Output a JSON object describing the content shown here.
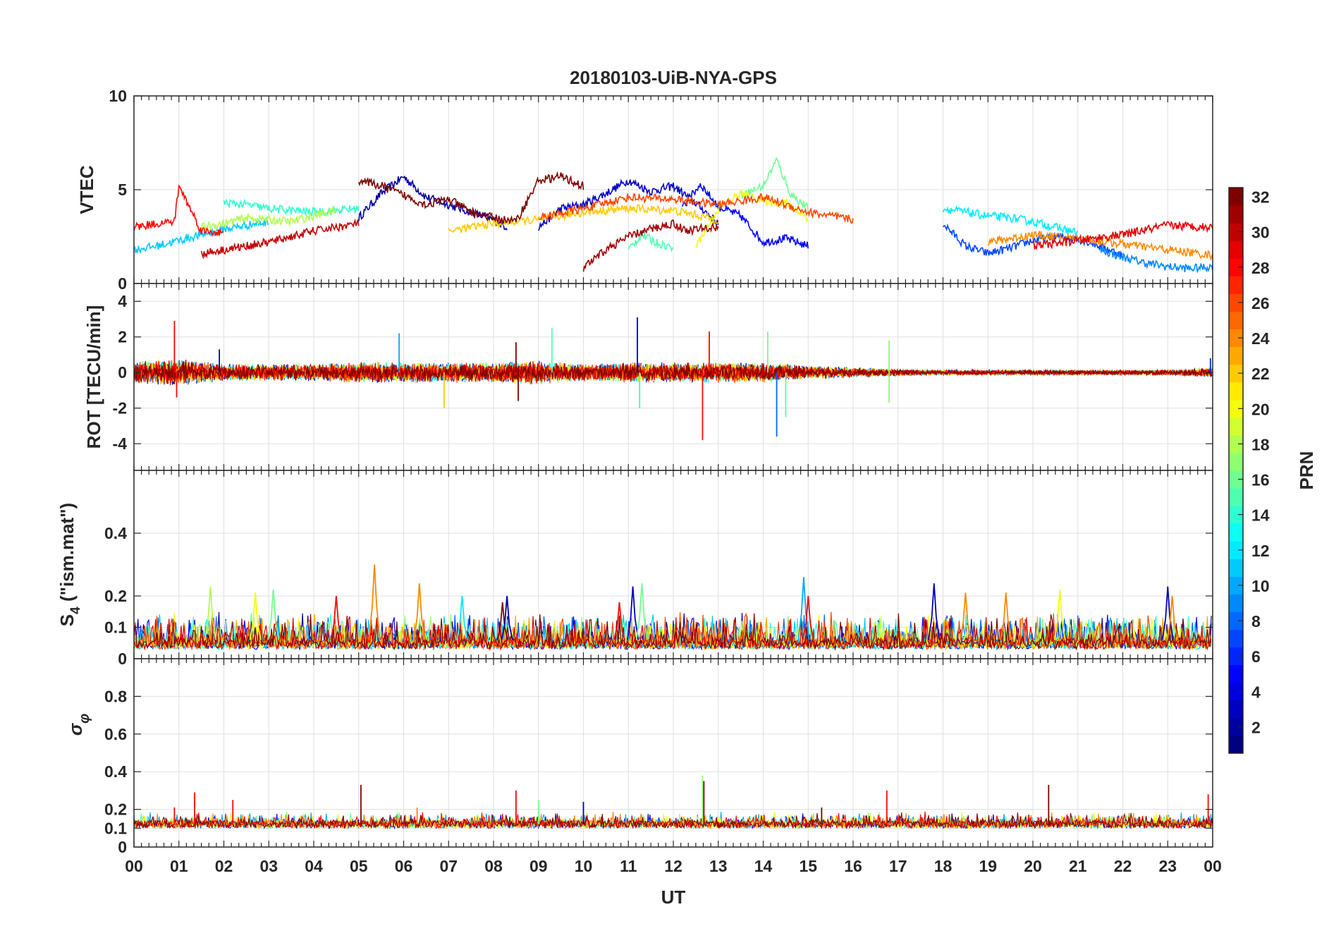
{
  "figure": {
    "title": "20180103-UiB-NYA-GPS",
    "xlabel": "UT"
  },
  "chart_data": [
    {
      "type": "line",
      "id": "vtec",
      "ylabel": "VTEC",
      "ylim": [
        0,
        10
      ],
      "yticks": [
        0,
        5,
        10
      ],
      "xlim": [
        0,
        24
      ],
      "grid": true,
      "note_series": "one trace per GPS PRN (1-32), coloured by PRN",
      "series": [
        {
          "prn": 2,
          "x": [
            5.0,
            5.5,
            6.0,
            6.5,
            7.0,
            7.5,
            8.0,
            8.3
          ],
          "y": [
            3.5,
            4.8,
            5.7,
            4.6,
            4.2,
            3.8,
            3.4,
            3.0
          ]
        },
        {
          "prn": 3,
          "x": [
            9.0,
            9.5,
            10.0,
            10.5,
            11.0,
            11.5,
            12.0,
            12.5,
            13.0
          ],
          "y": [
            3.0,
            4.0,
            4.2,
            4.8,
            5.5,
            4.9,
            5.2,
            4.3,
            3.2
          ]
        },
        {
          "prn": 5,
          "x": [
            12.2,
            12.6,
            13.0,
            13.5,
            14.0,
            14.5,
            15.0
          ],
          "y": [
            4.0,
            5.3,
            4.1,
            3.6,
            2.2,
            2.4,
            2.0
          ]
        },
        {
          "prn": 7,
          "x": [
            18.0,
            18.5,
            19.0,
            19.5,
            20.0,
            20.5,
            21.0,
            21.5,
            22.0
          ],
          "y": [
            3.2,
            2.0,
            1.6,
            1.9,
            2.3,
            2.5,
            2.4,
            2.0,
            1.5
          ]
        },
        {
          "prn": 9,
          "x": [
            21.5,
            22.0,
            22.5,
            23.0,
            23.5,
            24.0
          ],
          "y": [
            1.8,
            1.4,
            1.1,
            0.9,
            0.8,
            0.9
          ]
        },
        {
          "prn": 11,
          "x": [
            0.0,
            0.5,
            1.0,
            1.5,
            2.0,
            2.5,
            3.0
          ],
          "y": [
            1.8,
            2.0,
            2.3,
            2.6,
            2.9,
            3.1,
            3.3
          ]
        },
        {
          "prn": 12,
          "x": [
            18.0,
            18.5,
            19.0,
            19.5,
            20.0,
            20.5,
            21.0
          ],
          "y": [
            4.0,
            3.8,
            3.6,
            3.5,
            3.3,
            3.0,
            2.7
          ]
        },
        {
          "prn": 14,
          "x": [
            2.0,
            2.5,
            3.0,
            3.5,
            4.0,
            4.5,
            5.0
          ],
          "y": [
            4.3,
            4.2,
            4.0,
            3.9,
            3.8,
            3.9,
            4.0
          ]
        },
        {
          "prn": 15,
          "x": [
            11.0,
            11.3,
            11.6,
            12.0
          ],
          "y": [
            1.8,
            2.6,
            2.2,
            1.9
          ]
        },
        {
          "prn": 16,
          "x": [
            13.5,
            14.0,
            14.3,
            14.6,
            15.0
          ],
          "y": [
            4.7,
            5.2,
            6.6,
            4.8,
            4.0
          ]
        },
        {
          "prn": 18,
          "x": [
            1.5,
            2.0,
            2.5,
            3.0,
            3.5,
            4.0,
            4.5
          ],
          "y": [
            3.0,
            3.2,
            3.5,
            3.4,
            3.3,
            3.6,
            3.9
          ]
        },
        {
          "prn": 20,
          "x": [
            12.5,
            13.0,
            13.5,
            14.0,
            14.5,
            15.0
          ],
          "y": [
            2.0,
            4.0,
            4.8,
            4.4,
            4.3,
            3.5
          ]
        },
        {
          "prn": 22,
          "x": [
            7.0,
            8.0,
            9.0,
            10.0,
            11.0,
            12.0,
            13.0
          ],
          "y": [
            2.8,
            3.2,
            3.4,
            3.8,
            4.0,
            3.9,
            3.4
          ]
        },
        {
          "prn": 24,
          "x": [
            19.0,
            20.0,
            21.0,
            22.0,
            23.0,
            24.0
          ],
          "y": [
            2.2,
            2.6,
            2.4,
            2.1,
            1.8,
            1.5
          ]
        },
        {
          "prn": 26,
          "x": [
            9.0,
            10.0,
            11.0,
            12.0,
            13.0,
            14.0,
            15.0,
            16.0
          ],
          "y": [
            3.5,
            4.0,
            4.6,
            4.5,
            4.2,
            4.6,
            3.8,
            3.4
          ]
        },
        {
          "prn": 28,
          "x": [
            0.0,
            0.5,
            0.9,
            1.0,
            1.5,
            2.0
          ],
          "y": [
            3.0,
            3.2,
            3.3,
            5.2,
            2.8,
            2.7
          ]
        },
        {
          "prn": 29,
          "x": [
            20.0,
            21.0,
            22.0,
            23.0,
            24.0
          ],
          "y": [
            2.0,
            2.3,
            2.6,
            3.1,
            3.0
          ]
        },
        {
          "prn": 30,
          "x": [
            1.5,
            2.0,
            2.5,
            3.0,
            3.5,
            4.0,
            4.5,
            5.0
          ],
          "y": [
            1.6,
            1.8,
            2.0,
            2.2,
            2.5,
            2.8,
            3.0,
            3.2
          ]
        },
        {
          "prn": 31,
          "x": [
            10.0,
            10.5,
            11.0,
            11.5,
            12.0,
            12.3,
            12.5,
            13.0
          ],
          "y": [
            0.8,
            1.8,
            2.5,
            2.9,
            3.2,
            2.8,
            2.9,
            3.0
          ]
        },
        {
          "prn": 32,
          "x": [
            5.0,
            5.5,
            6.0,
            6.5,
            7.0,
            7.5,
            8.0,
            8.5,
            9.0,
            9.5,
            10.0
          ],
          "y": [
            5.5,
            5.2,
            4.7,
            4.2,
            4.5,
            3.8,
            3.5,
            3.3,
            5.5,
            5.7,
            5.2
          ]
        }
      ]
    },
    {
      "type": "line",
      "id": "rot",
      "ylabel": "ROT [TECU/min]",
      "ylim": [
        -5.5,
        5
      ],
      "yticks": [
        -4,
        -2,
        0,
        2,
        4
      ],
      "xlim": [
        0,
        24
      ],
      "grid": true,
      "noise_envelope": {
        "x": [
          0,
          1,
          2,
          3,
          4,
          5,
          6,
          7,
          8,
          9,
          10,
          11,
          12,
          13,
          14,
          15,
          16,
          17,
          18,
          19,
          20,
          21,
          22,
          23,
          24
        ],
        "amplitude": [
          0.7,
          0.8,
          0.5,
          0.5,
          0.5,
          0.6,
          0.6,
          0.6,
          0.6,
          0.7,
          0.5,
          0.6,
          0.6,
          0.6,
          0.6,
          0.4,
          0.3,
          0.2,
          0.15,
          0.15,
          0.15,
          0.15,
          0.15,
          0.15,
          0.3
        ]
      },
      "spikes": [
        {
          "x": 0.9,
          "y": 2.9,
          "prn": 28
        },
        {
          "x": 0.95,
          "y": -1.4,
          "prn": 28
        },
        {
          "x": 1.9,
          "y": 1.3,
          "prn": 3
        },
        {
          "x": 5.9,
          "y": 2.2,
          "prn": 10
        },
        {
          "x": 6.9,
          "y": -2.0,
          "prn": 22
        },
        {
          "x": 8.5,
          "y": 1.7,
          "prn": 32
        },
        {
          "x": 8.55,
          "y": -1.6,
          "prn": 32
        },
        {
          "x": 9.3,
          "y": 2.5,
          "prn": 15
        },
        {
          "x": 11.2,
          "y": 3.1,
          "prn": 3
        },
        {
          "x": 11.25,
          "y": -2.0,
          "prn": 15
        },
        {
          "x": 11.25,
          "y": -2.0,
          "prn": 15
        },
        {
          "x": 12.65,
          "y": -3.8,
          "prn": 28
        },
        {
          "x": 12.8,
          "y": 2.3,
          "prn": 28
        },
        {
          "x": 14.1,
          "y": 2.3,
          "prn": 16
        },
        {
          "x": 14.3,
          "y": -3.6,
          "prn": 8
        },
        {
          "x": 14.5,
          "y": -2.5,
          "prn": 15
        },
        {
          "x": 16.8,
          "y": 1.8,
          "prn": 17
        },
        {
          "x": 16.8,
          "y": -1.7,
          "prn": 17
        },
        {
          "x": 23.95,
          "y": 0.8,
          "prn": 6
        }
      ]
    },
    {
      "type": "line",
      "id": "s4",
      "ylabel": "S4 (\"ism.mat\")",
      "ylim": [
        0,
        0.6
      ],
      "yticks": [
        0,
        0.1,
        0.2,
        0.4
      ],
      "xlim": [
        0,
        24
      ],
      "grid": true,
      "baseline": [
        0.03,
        0.06
      ],
      "spikes": [
        {
          "x": 1.7,
          "y": 0.23,
          "prn": 18
        },
        {
          "x": 2.7,
          "y": 0.21,
          "prn": 20
        },
        {
          "x": 3.1,
          "y": 0.22,
          "prn": 16
        },
        {
          "x": 4.5,
          "y": 0.2,
          "prn": 28
        },
        {
          "x": 5.35,
          "y": 0.3,
          "prn": 24
        },
        {
          "x": 6.35,
          "y": 0.24,
          "prn": 24
        },
        {
          "x": 7.3,
          "y": 0.2,
          "prn": 12
        },
        {
          "x": 8.2,
          "y": 0.18,
          "prn": 32
        },
        {
          "x": 8.3,
          "y": 0.2,
          "prn": 2
        },
        {
          "x": 10.8,
          "y": 0.18,
          "prn": 28
        },
        {
          "x": 11.1,
          "y": 0.23,
          "prn": 3
        },
        {
          "x": 11.3,
          "y": 0.24,
          "prn": 16
        },
        {
          "x": 14.9,
          "y": 0.26,
          "prn": 10
        },
        {
          "x": 15.0,
          "y": 0.2,
          "prn": 28
        },
        {
          "x": 17.8,
          "y": 0.24,
          "prn": 3
        },
        {
          "x": 18.5,
          "y": 0.21,
          "prn": 24
        },
        {
          "x": 19.4,
          "y": 0.21,
          "prn": 24
        },
        {
          "x": 20.6,
          "y": 0.22,
          "prn": 20
        },
        {
          "x": 23.0,
          "y": 0.23,
          "prn": 3
        },
        {
          "x": 23.1,
          "y": 0.2,
          "prn": 24
        }
      ]
    },
    {
      "type": "line",
      "id": "sigma_phi",
      "ylabel": "σφ",
      "ylim": [
        0,
        1
      ],
      "yticks": [
        0,
        0.1,
        0.2,
        0.4,
        0.6,
        0.8
      ],
      "xlim": [
        0,
        24
      ],
      "grid": true,
      "baseline": [
        0.1,
        0.14
      ],
      "spikes": [
        {
          "x": 0.9,
          "y": 0.21,
          "prn": 28
        },
        {
          "x": 1.35,
          "y": 0.29,
          "prn": 28
        },
        {
          "x": 2.2,
          "y": 0.25,
          "prn": 28
        },
        {
          "x": 5.05,
          "y": 0.33,
          "prn": 32
        },
        {
          "x": 6.3,
          "y": 0.21,
          "prn": 24
        },
        {
          "x": 8.5,
          "y": 0.3,
          "prn": 28
        },
        {
          "x": 9.0,
          "y": 0.25,
          "prn": 16
        },
        {
          "x": 10.0,
          "y": 0.24,
          "prn": 3
        },
        {
          "x": 12.65,
          "y": 0.38,
          "prn": 17
        },
        {
          "x": 12.68,
          "y": 0.35,
          "prn": 32
        },
        {
          "x": 15.3,
          "y": 0.21,
          "prn": 32
        },
        {
          "x": 16.75,
          "y": 0.3,
          "prn": 28
        },
        {
          "x": 20.35,
          "y": 0.33,
          "prn": 32
        },
        {
          "x": 23.9,
          "y": 0.28,
          "prn": 28
        }
      ]
    }
  ],
  "xaxis": {
    "ticks": [
      0,
      1,
      2,
      3,
      4,
      5,
      6,
      7,
      8,
      9,
      10,
      11,
      12,
      13,
      14,
      15,
      16,
      17,
      18,
      19,
      20,
      21,
      22,
      23,
      24
    ],
    "tick_labels": [
      "00",
      "01",
      "02",
      "03",
      "04",
      "05",
      "06",
      "07",
      "08",
      "09",
      "10",
      "11",
      "12",
      "13",
      "14",
      "15",
      "16",
      "17",
      "18",
      "19",
      "20",
      "21",
      "22",
      "23",
      "00"
    ]
  },
  "colorbar": {
    "label": "PRN",
    "range": [
      1,
      32
    ],
    "colormap": "jet",
    "ticks": [
      2,
      4,
      6,
      8,
      10,
      12,
      14,
      16,
      18,
      20,
      22,
      24,
      26,
      28,
      30,
      32
    ],
    "tick_labels": [
      "2",
      "4",
      "6",
      "8",
      "10",
      "12",
      "14",
      "16",
      "18",
      "20",
      "22",
      "24",
      "26",
      "28",
      "30",
      "32"
    ]
  }
}
